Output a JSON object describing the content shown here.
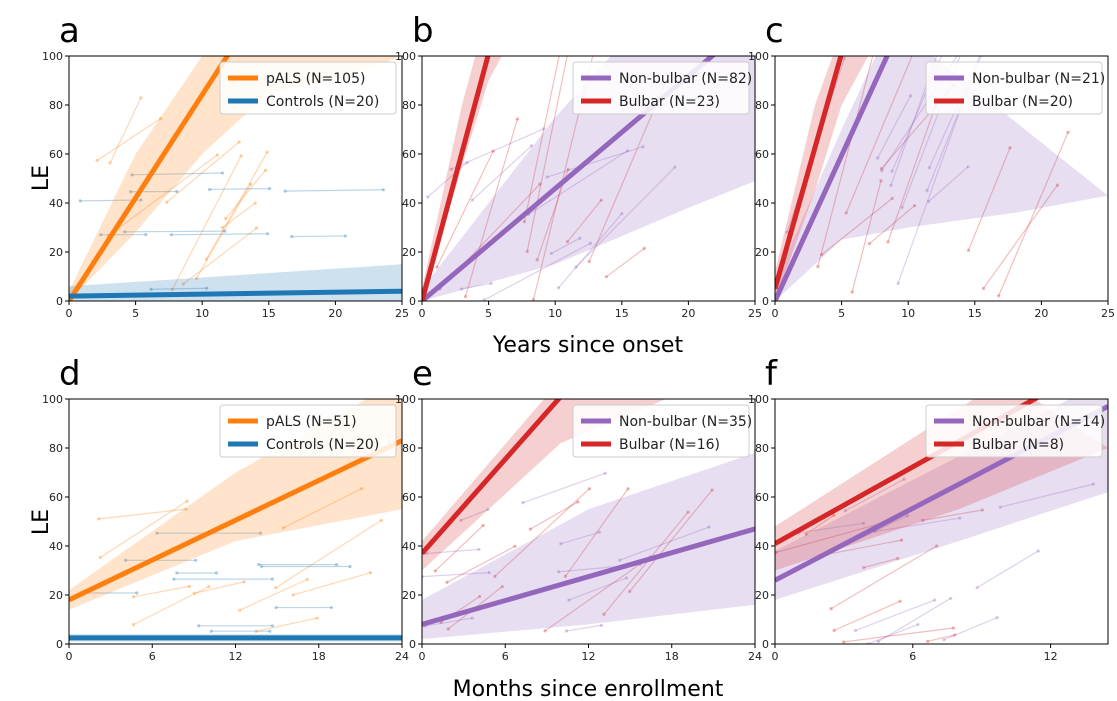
{
  "figure": {
    "ylabel": "LE",
    "xlabel_top": "Years since onset",
    "xlabel_bottom": "Months since enrollment"
  },
  "colors": {
    "pALS": "#ff7f0e",
    "Controls": "#1f77b4",
    "Non-bulbar": "#9467bd",
    "Bulbar": "#d62728"
  },
  "chart_data": [
    {
      "panel": "a",
      "type": "line",
      "xlim": [
        0,
        25
      ],
      "ylim": [
        0,
        100
      ],
      "xticks": [
        0,
        5,
        10,
        15,
        20,
        25
      ],
      "yticks": [
        0,
        20,
        40,
        60,
        80,
        100
      ],
      "legend_loc": "upper right",
      "series": [
        {
          "name": "pALS (N=105)",
          "color_key": "pALS",
          "x": [
            0,
            12
          ],
          "y": [
            0,
            101
          ],
          "band_upper": [
            [
              0,
              4
            ],
            [
              5,
              60
            ],
            [
              10,
              100
            ],
            [
              13,
              100
            ],
            [
              14,
              108
            ]
          ],
          "band_lower": [
            [
              0,
              0
            ],
            [
              5,
              28
            ],
            [
              10,
              60
            ],
            [
              15,
              85
            ],
            [
              20,
              90
            ],
            [
              25,
              100
            ]
          ]
        },
        {
          "name": "Controls (N=20)",
          "color_key": "Controls",
          "x": [
            0,
            25
          ],
          "y": [
            2,
            4
          ],
          "band_upper": [
            [
              0,
              6
            ],
            [
              25,
              15
            ]
          ],
          "band_lower": [
            [
              0,
              0
            ],
            [
              25,
              0
            ]
          ]
        }
      ]
    },
    {
      "panel": "b",
      "type": "line",
      "xlim": [
        0,
        25
      ],
      "ylim": [
        0,
        100
      ],
      "xticks": [
        0,
        5,
        10,
        15,
        20,
        25
      ],
      "yticks": [
        0,
        20,
        40,
        60,
        80,
        100
      ],
      "legend_loc": "upper right",
      "series": [
        {
          "name": "Non-bulbar (N=82)",
          "color_key": "Non-bulbar",
          "x": [
            0,
            22
          ],
          "y": [
            0,
            101
          ],
          "band_upper": [
            [
              0,
              5
            ],
            [
              10,
              75
            ],
            [
              15,
              105
            ],
            [
              25,
              108
            ]
          ],
          "band_lower": [
            [
              0,
              0
            ],
            [
              10,
              15
            ],
            [
              20,
              38
            ],
            [
              25,
              49
            ]
          ]
        },
        {
          "name": "Bulbar (N=23)",
          "color_key": "Bulbar",
          "x": [
            0,
            5
          ],
          "y": [
            0,
            101
          ],
          "band_upper": [
            [
              0,
              5
            ],
            [
              3,
              80
            ],
            [
              4,
              100
            ],
            [
              5,
              110
            ]
          ],
          "band_lower": [
            [
              0,
              0
            ],
            [
              3,
              55
            ],
            [
              5,
              90
            ],
            [
              6,
              100
            ]
          ]
        }
      ]
    },
    {
      "panel": "c",
      "type": "line",
      "xlim": [
        0,
        25
      ],
      "ylim": [
        0,
        100
      ],
      "xticks": [
        0,
        5,
        10,
        15,
        20,
        25
      ],
      "yticks": [
        0,
        20,
        40,
        60,
        80,
        100
      ],
      "legend_loc": "upper right",
      "series": [
        {
          "name": "Non-bulbar (N=21)",
          "color_key": "Non-bulbar",
          "x": [
            0,
            8.5
          ],
          "y": [
            0,
            101
          ],
          "band_upper": [
            [
              0,
              8
            ],
            [
              5,
              70
            ],
            [
              8,
              105
            ],
            [
              10,
              108
            ]
          ],
          "band_lower": [
            [
              0,
              0
            ],
            [
              5,
              25
            ],
            [
              10,
              30
            ],
            [
              18,
              36
            ],
            [
              25,
              43
            ]
          ]
        },
        {
          "name": "Bulbar (N=20)",
          "color_key": "Bulbar",
          "x": [
            0,
            5
          ],
          "y": [
            5,
            101
          ],
          "band_upper": [
            [
              0,
              12
            ],
            [
              3,
              80
            ],
            [
              5,
              110
            ]
          ],
          "band_lower": [
            [
              0,
              0
            ],
            [
              3,
              45
            ],
            [
              5,
              80
            ],
            [
              7,
              100
            ]
          ]
        }
      ]
    },
    {
      "panel": "d",
      "type": "line",
      "xlim": [
        0,
        24
      ],
      "ylim": [
        0,
        100
      ],
      "xticks": [
        0,
        6,
        12,
        18,
        24
      ],
      "yticks": [
        0,
        20,
        40,
        60,
        80,
        100
      ],
      "legend_loc": "upper right",
      "series": [
        {
          "name": "pALS (N=51)",
          "color_key": "pALS",
          "x": [
            0,
            24
          ],
          "y": [
            18,
            83
          ],
          "band_upper": [
            [
              0,
              22
            ],
            [
              12,
              70
            ],
            [
              24,
              108
            ]
          ],
          "band_lower": [
            [
              0,
              14
            ],
            [
              12,
              42
            ],
            [
              24,
              55
            ]
          ]
        },
        {
          "name": "Controls (N=20)",
          "color_key": "Controls",
          "x": [
            0,
            24
          ],
          "y": [
            2.5,
            2.5
          ],
          "band_upper": [
            [
              0,
              4
            ],
            [
              24,
              4
            ]
          ],
          "band_lower": [
            [
              0,
              1
            ],
            [
              24,
              1
            ]
          ]
        }
      ]
    },
    {
      "panel": "e",
      "type": "line",
      "xlim": [
        0,
        24
      ],
      "ylim": [
        0,
        100
      ],
      "xticks": [
        0,
        6,
        12,
        18,
        24
      ],
      "yticks": [
        0,
        20,
        40,
        60,
        80,
        100
      ],
      "legend_loc": "upper right",
      "series": [
        {
          "name": "Non-bulbar (N=35)",
          "color_key": "Non-bulbar",
          "x": [
            0,
            24
          ],
          "y": [
            8,
            47
          ],
          "band_upper": [
            [
              0,
              18
            ],
            [
              12,
              55
            ],
            [
              24,
              78
            ]
          ],
          "band_lower": [
            [
              0,
              2
            ],
            [
              12,
              8
            ],
            [
              24,
              16
            ]
          ]
        },
        {
          "name": "Bulbar (N=16)",
          "color_key": "Bulbar",
          "x": [
            0,
            10
          ],
          "y": [
            37,
            101
          ],
          "band_upper": [
            [
              0,
              42
            ],
            [
              10,
              108
            ]
          ],
          "band_lower": [
            [
              0,
              30
            ],
            [
              10,
              82
            ],
            [
              18,
              101
            ]
          ]
        }
      ]
    },
    {
      "panel": "f",
      "type": "line",
      "xlim": [
        0,
        14.5
      ],
      "ylim": [
        0,
        100
      ],
      "xticks": [
        0,
        6,
        12
      ],
      "yticks": [
        0,
        20,
        40,
        60,
        80,
        100
      ],
      "legend_loc": "upper right",
      "series": [
        {
          "name": "Non-bulbar (N=14)",
          "color_key": "Non-bulbar",
          "x": [
            0,
            14.5
          ],
          "y": [
            26,
            97
          ],
          "band_upper": [
            [
              0,
              38
            ],
            [
              14.5,
              108
            ]
          ],
          "band_lower": [
            [
              0,
              18
            ],
            [
              8,
              42
            ],
            [
              14.5,
              62
            ]
          ]
        },
        {
          "name": "Bulbar (N=8)",
          "color_key": "Bulbar",
          "x": [
            0,
            11.5
          ],
          "y": [
            41,
            101
          ],
          "band_upper": [
            [
              0,
              48
            ],
            [
              10,
              108
            ]
          ],
          "band_lower": [
            [
              0,
              30
            ],
            [
              8,
              55
            ],
            [
              14.5,
              80
            ]
          ]
        }
      ]
    }
  ]
}
